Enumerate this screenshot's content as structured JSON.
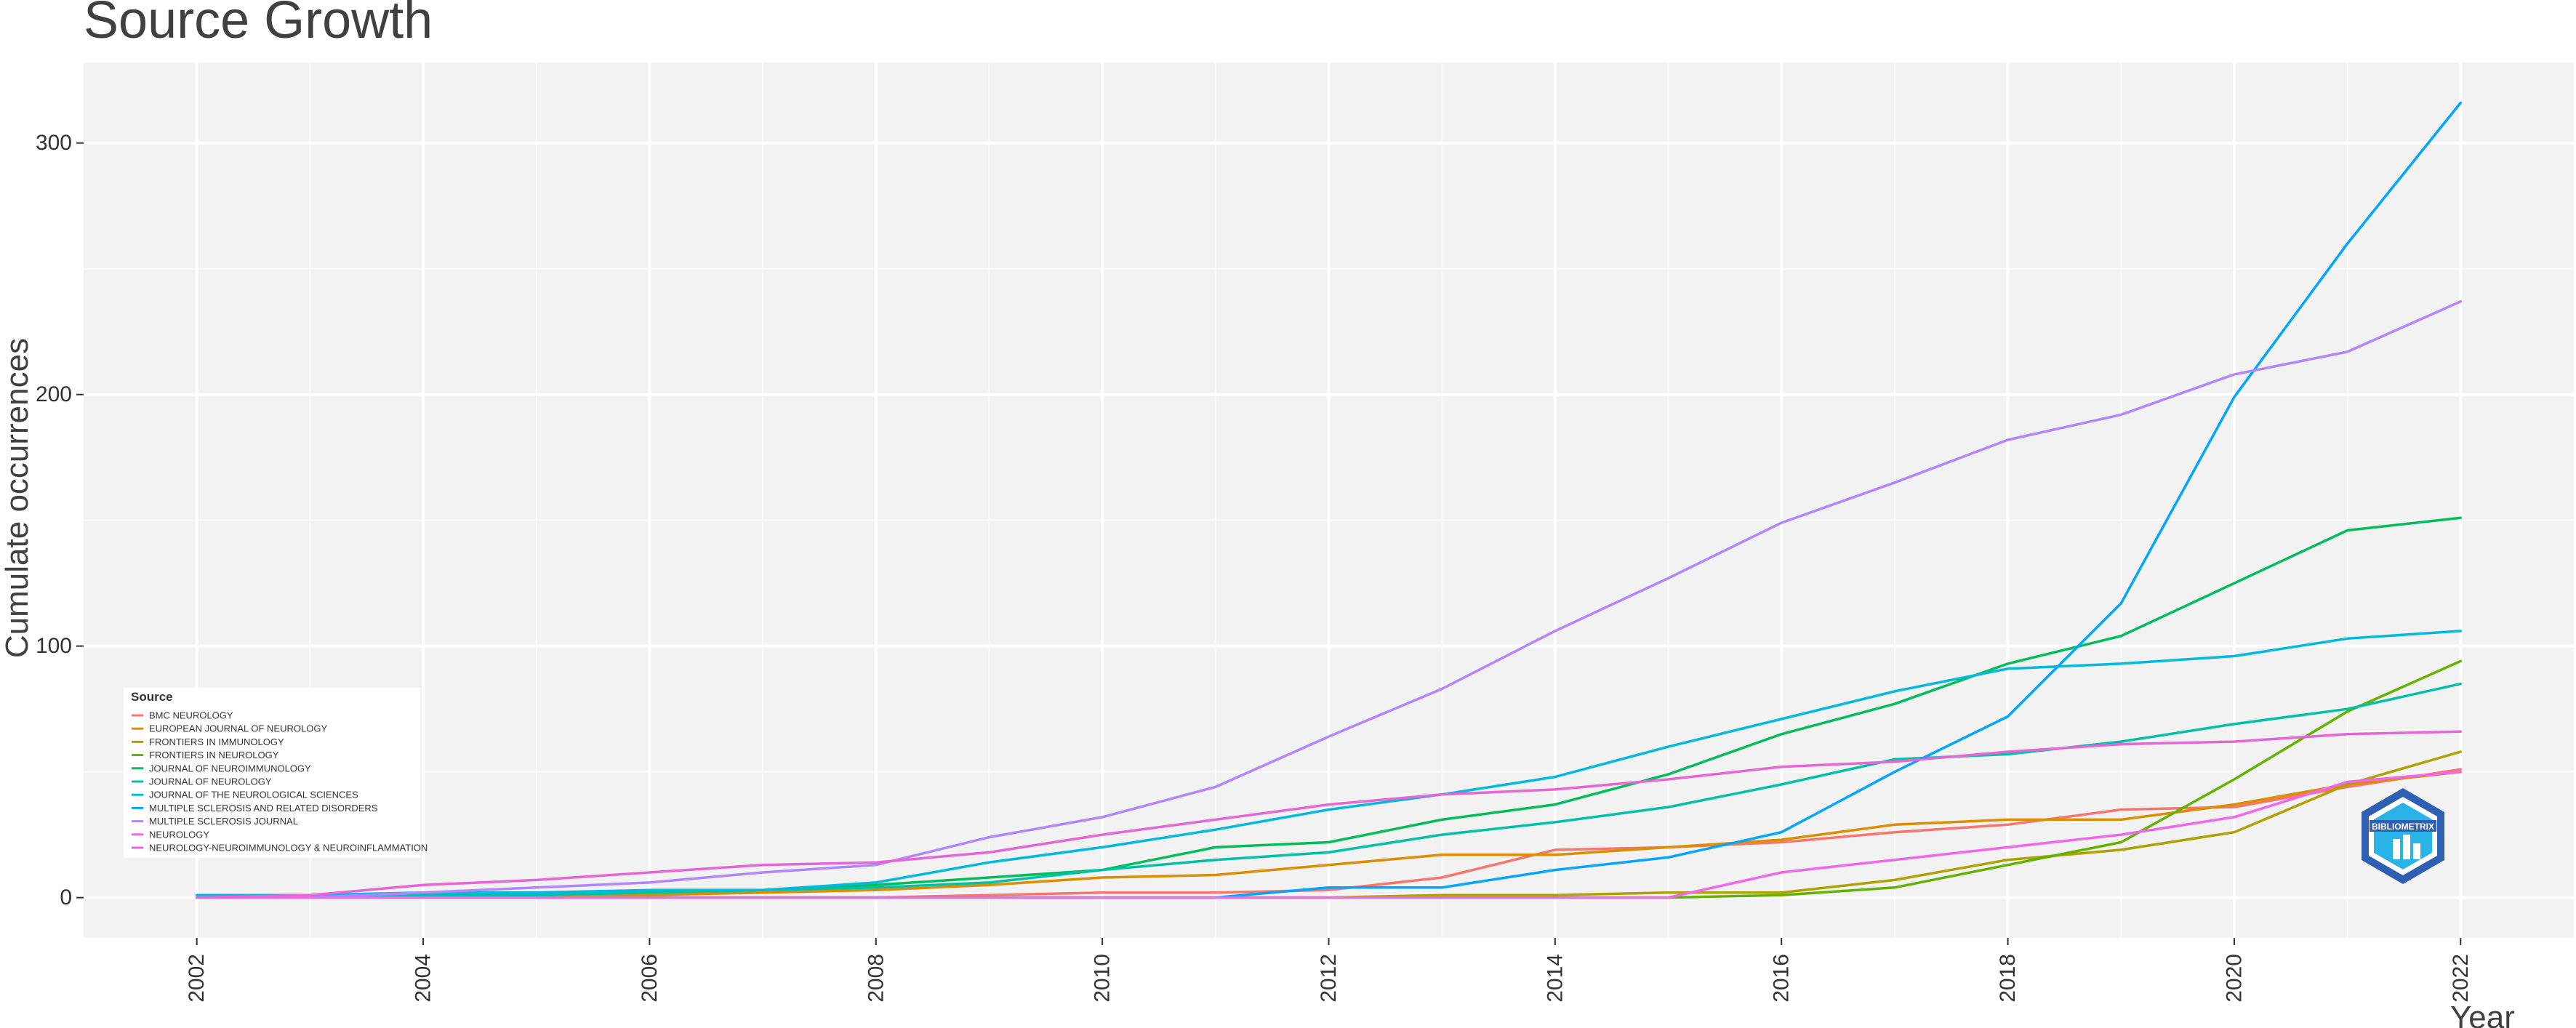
{
  "chart_data": {
    "type": "line",
    "title": "Source Growth",
    "xlabel": "Year",
    "ylabel": "Cumulate occurrences",
    "x": [
      2002,
      2003,
      2004,
      2005,
      2006,
      2007,
      2008,
      2009,
      2010,
      2011,
      2012,
      2013,
      2014,
      2015,
      2016,
      2017,
      2018,
      2019,
      2020,
      2021,
      2022
    ],
    "xticks": [
      "2002",
      "2004",
      "2006",
      "2008",
      "2010",
      "2012",
      "2014",
      "2016",
      "2018",
      "2020",
      "2022"
    ],
    "yticks": [
      "0",
      "100",
      "200",
      "300"
    ],
    "xlim": [
      2001,
      2023
    ],
    "ylim": [
      -16,
      332
    ],
    "grid": true,
    "legend_title": "Source",
    "legend_position": "bottom-left inside",
    "series": [
      {
        "name": "BMC NEUROLOGY",
        "color": "#F8766D",
        "values": [
          0,
          0,
          0,
          0,
          0,
          0,
          0,
          1,
          2,
          2,
          3,
          8,
          19,
          20,
          22,
          26,
          29,
          35,
          36,
          44,
          51
        ]
      },
      {
        "name": "EUROPEAN JOURNAL OF NEUROLOGY",
        "color": "#DB8E00",
        "values": [
          0,
          0,
          0,
          0,
          1,
          2,
          3,
          5,
          8,
          9,
          13,
          17,
          17,
          20,
          23,
          29,
          31,
          31,
          37,
          45,
          50
        ]
      },
      {
        "name": "FRONTIERS IN IMMUNOLOGY",
        "color": "#AEA200",
        "values": [
          0,
          0,
          0,
          0,
          0,
          0,
          0,
          0,
          0,
          0,
          0,
          1,
          1,
          2,
          2,
          7,
          15,
          19,
          26,
          45,
          58
        ]
      },
      {
        "name": "FRONTIERS IN NEUROLOGY",
        "color": "#64B200",
        "values": [
          0,
          0,
          0,
          0,
          0,
          0,
          0,
          0,
          0,
          0,
          0,
          0,
          0,
          0,
          1,
          4,
          13,
          22,
          47,
          74,
          94
        ]
      },
      {
        "name": "JOURNAL OF NEUROIMMUNOLOGY",
        "color": "#00BD5C",
        "values": [
          0,
          0,
          1,
          1,
          2,
          3,
          5,
          8,
          11,
          20,
          22,
          31,
          37,
          49,
          65,
          77,
          93,
          104,
          125,
          146,
          151
        ]
      },
      {
        "name": "JOURNAL OF NEUROLOGY",
        "color": "#00C1A7",
        "values": [
          0,
          0,
          1,
          1,
          2,
          3,
          4,
          6,
          11,
          15,
          18,
          25,
          30,
          36,
          45,
          55,
          57,
          62,
          69,
          75,
          85
        ]
      },
      {
        "name": "JOURNAL OF THE NEUROLOGICAL SCIENCES",
        "color": "#00BADE",
        "values": [
          1,
          1,
          2,
          2,
          3,
          3,
          6,
          14,
          20,
          27,
          35,
          41,
          48,
          60,
          71,
          82,
          91,
          93,
          96,
          103,
          106
        ]
      },
      {
        "name": "MULTIPLE SCLEROSIS AND RELATED DISORDERS",
        "color": "#00A6FF",
        "values": [
          0,
          0,
          0,
          0,
          0,
          0,
          0,
          0,
          0,
          0,
          4,
          4,
          11,
          16,
          26,
          50,
          72,
          117,
          199,
          260,
          316
        ]
      },
      {
        "name": "MULTIPLE SCLEROSIS JOURNAL",
        "color": "#B385FF",
        "values": [
          0,
          0,
          2,
          4,
          6,
          10,
          13,
          24,
          32,
          44,
          64,
          83,
          106,
          127,
          149,
          165,
          182,
          192,
          208,
          217,
          237
        ]
      },
      {
        "name": "NEUROLOGY",
        "color": "#EF67EB",
        "values": [
          0,
          0,
          0,
          0,
          0,
          0,
          0,
          0,
          0,
          0,
          0,
          0,
          0,
          0,
          10,
          15,
          20,
          25,
          32,
          46,
          50
        ]
      },
      {
        "name": "NEUROLOGY-NEUROIMMUNOLOGY & NEUROINFLAMMATION",
        "color": "#E467D5",
        "values": [
          0,
          1,
          5,
          7,
          10,
          13,
          14,
          18,
          25,
          31,
          37,
          41,
          43,
          47,
          52,
          54,
          58,
          61,
          62,
          65,
          66
        ]
      }
    ],
    "watermark": "BIBLIOMETRIX"
  }
}
